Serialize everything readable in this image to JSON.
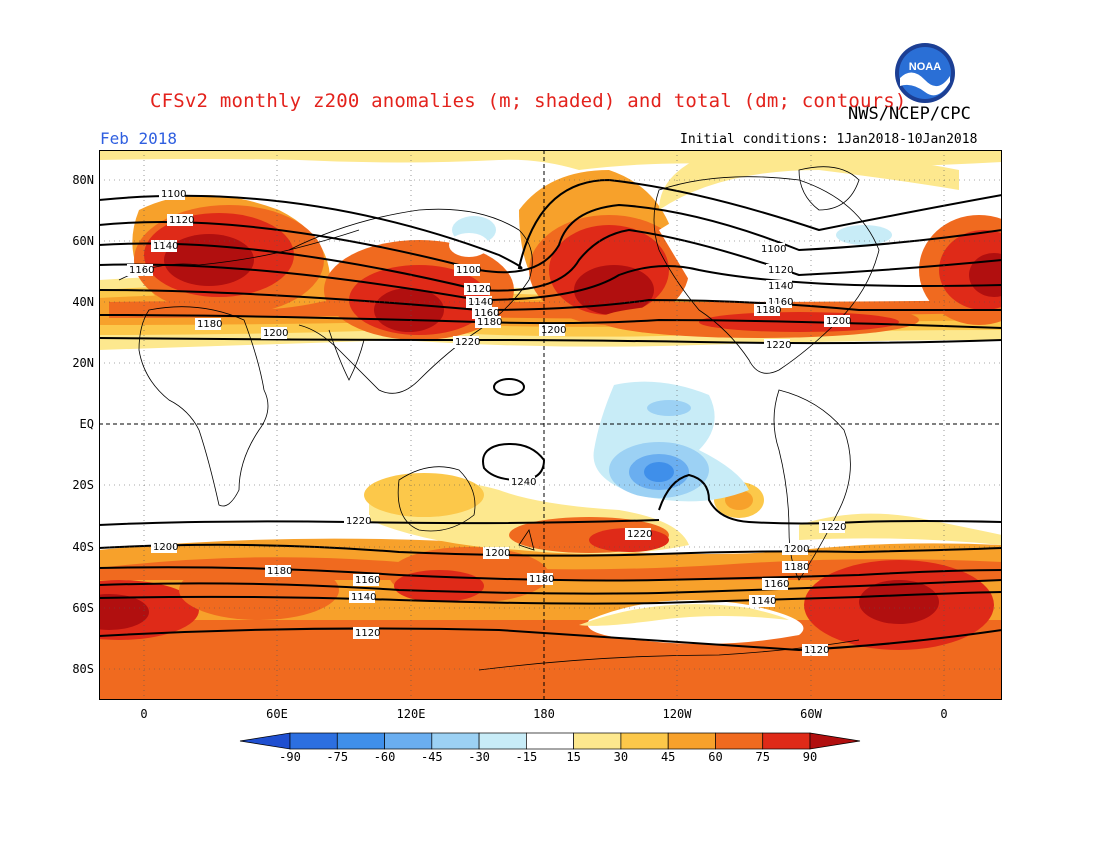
{
  "header": {
    "title": "CFSv2 monthly z200 anomalies (m; shaded) and total (dm; contours)",
    "agency": "NWS/NCEP/CPC",
    "period": "Feb 2018",
    "initial_conditions": "Initial conditions: 1Jan2018-10Jan2018",
    "logo_text": "NOAA"
  },
  "axes": {
    "lat_labels": [
      "80N",
      "60N",
      "40N",
      "20N",
      "EQ",
      "20S",
      "40S",
      "60S",
      "80S"
    ],
    "lon_labels": [
      "0",
      "60E",
      "120E",
      "180",
      "120W",
      "60W",
      "0"
    ]
  },
  "colorbar": {
    "labels": [
      "-90",
      "-75",
      "-60",
      "-45",
      "-30",
      "-15",
      "15",
      "30",
      "45",
      "60",
      "75",
      "90"
    ],
    "colors": [
      "#1f4fd0",
      "#2c6fe0",
      "#3f8fea",
      "#6aaef0",
      "#9cd1f4",
      "#c8ecf7",
      "#ffffff",
      "#fde88e",
      "#fcc84a",
      "#f7a12b",
      "#f06a1f",
      "#df2a18",
      "#b10f0f"
    ]
  },
  "contour_labels": [
    "1100",
    "1120",
    "1140",
    "1160",
    "1180",
    "1200",
    "1220",
    "1240"
  ],
  "colors": {
    "title": "#e3221c",
    "period": "#2f5fe0",
    "ocean": "#ffffff",
    "contour": "#000000"
  }
}
